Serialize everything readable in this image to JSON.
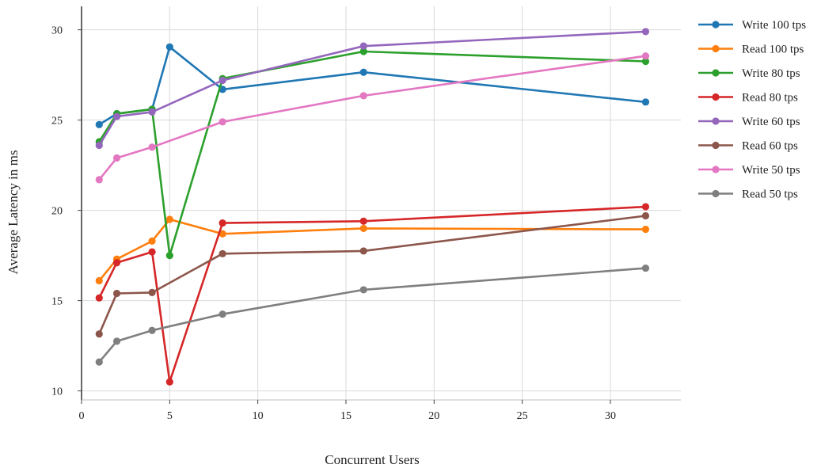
{
  "chart_data": {
    "type": "line",
    "xlabel": "Concurrent Users",
    "ylabel": "Average Latency in ms",
    "xlim": [
      0,
      34
    ],
    "ylim": [
      9.5,
      31.3
    ],
    "x_ticks": [
      0,
      5,
      10,
      15,
      20,
      25,
      30
    ],
    "y_ticks": [
      10,
      15,
      20,
      25,
      30
    ],
    "grid": true,
    "legend_position": "right",
    "series": [
      {
        "name": "Write 100 tps",
        "color": "#1f77b4",
        "x": [
          1,
          2,
          4,
          5,
          8,
          16,
          32
        ],
        "y": [
          24.75,
          25.35,
          25.6,
          29.05,
          26.7,
          27.65,
          26.0
        ]
      },
      {
        "name": "Read 100 tps",
        "color": "#ff7f0e",
        "x": [
          1,
          2,
          4,
          5,
          8,
          16,
          32
        ],
        "y": [
          16.1,
          17.3,
          18.3,
          19.5,
          18.7,
          19.0,
          18.95
        ]
      },
      {
        "name": "Write 80 tps",
        "color": "#2ca02c",
        "x": [
          1,
          2,
          4,
          5,
          8,
          16,
          32
        ],
        "y": [
          23.8,
          25.35,
          25.6,
          17.5,
          27.3,
          28.8,
          28.25
        ]
      },
      {
        "name": "Read 80 tps",
        "color": "#d62728",
        "x": [
          1,
          2,
          4,
          5,
          8,
          16,
          32
        ],
        "y": [
          15.15,
          17.1,
          17.7,
          10.5,
          19.3,
          19.4,
          20.2
        ]
      },
      {
        "name": "Write 60 tps",
        "color": "#9467bd",
        "x": [
          1,
          2,
          4,
          8,
          16,
          32
        ],
        "y": [
          23.6,
          25.2,
          25.45,
          27.2,
          29.1,
          29.9
        ]
      },
      {
        "name": "Read 60 tps",
        "color": "#8c564b",
        "x": [
          1,
          2,
          4,
          8,
          16,
          32
        ],
        "y": [
          13.15,
          15.4,
          15.45,
          17.6,
          17.75,
          19.7
        ]
      },
      {
        "name": "Write 50 tps",
        "color": "#e377c2",
        "x": [
          1,
          2,
          4,
          8,
          16,
          32
        ],
        "y": [
          21.7,
          22.9,
          23.5,
          24.9,
          26.35,
          28.55
        ]
      },
      {
        "name": "Read 50 tps",
        "color": "#7f7f7f",
        "x": [
          1,
          2,
          4,
          8,
          16,
          32
        ],
        "y": [
          11.6,
          12.75,
          13.35,
          14.25,
          15.6,
          16.8
        ]
      }
    ]
  }
}
